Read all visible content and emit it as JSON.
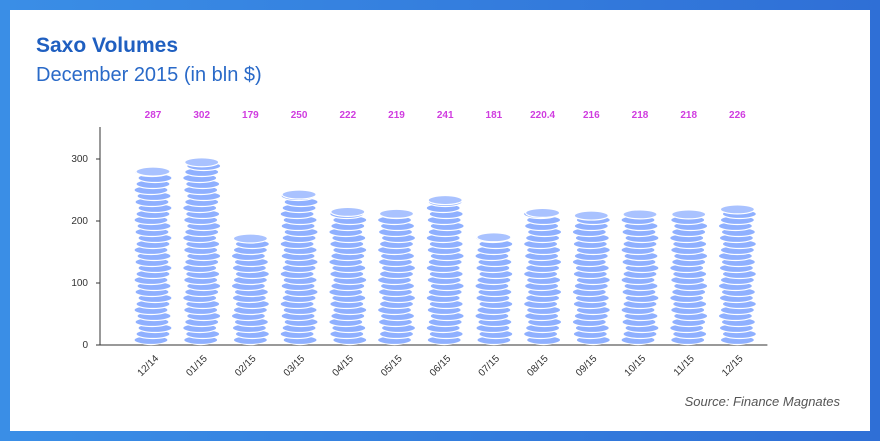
{
  "chart_data": {
    "type": "bar",
    "title": "Saxo Volumes",
    "subtitle": "December 2015 (in bln $)",
    "categories": [
      "12/14",
      "01/15",
      "02/15",
      "03/15",
      "04/15",
      "05/15",
      "06/15",
      "07/15",
      "08/15",
      "09/15",
      "10/15",
      "11/15",
      "12/15"
    ],
    "values": [
      287,
      302,
      179,
      250,
      222,
      219,
      241,
      181,
      220.4,
      216,
      218,
      218,
      226
    ],
    "data_labels": [
      "287",
      "302",
      "179",
      "250",
      "222",
      "219",
      "241",
      "181",
      "220.4",
      "216",
      "218",
      "218",
      "226"
    ],
    "y_ticks": [
      0,
      100,
      200,
      300
    ],
    "ylim": [
      0,
      350
    ],
    "grid": false,
    "legend": "none",
    "bar_style": "stacked-coins"
  },
  "source": "Source: Finance Magnates",
  "colors": {
    "frame": "#3a8ee6",
    "title": "#1f5fc0",
    "coin_fill": "#8fb0ff",
    "coin_edge": "#ffffff",
    "data_label": "#d03ce0",
    "axis": "#333333"
  }
}
